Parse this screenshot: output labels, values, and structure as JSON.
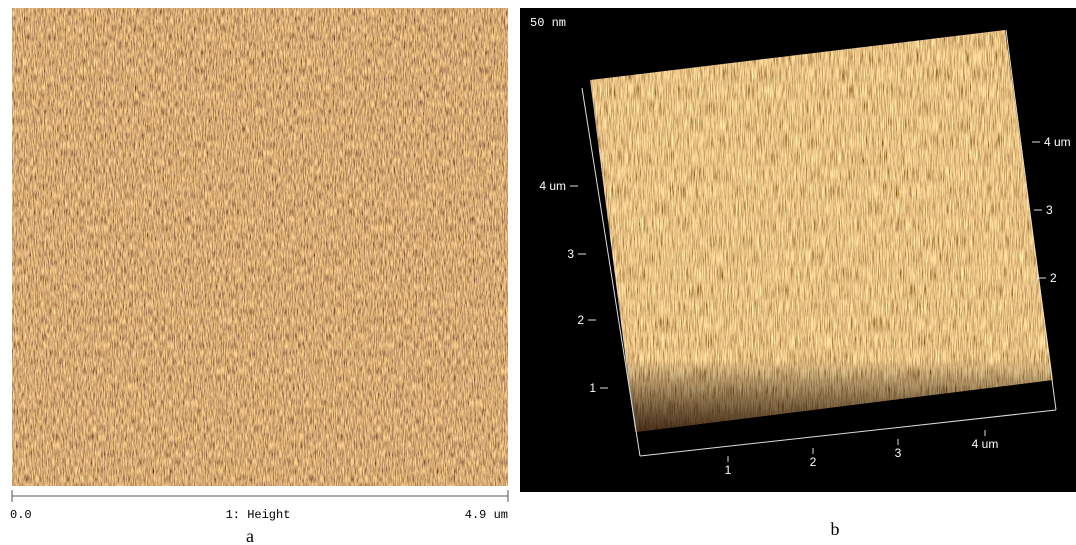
{
  "panel_a": {
    "scale_min": "0.0",
    "scale_label": "1: Height",
    "scale_max": "4.9 um",
    "caption": "a"
  },
  "panel_b": {
    "z_label": "50 nm",
    "left_axis": [
      "4 um",
      "3",
      "2",
      "1"
    ],
    "right_axis": [
      "4 um",
      "3",
      "2"
    ],
    "bottom_axis": [
      "1",
      "2",
      "3",
      "4 um"
    ],
    "caption": "b"
  }
}
